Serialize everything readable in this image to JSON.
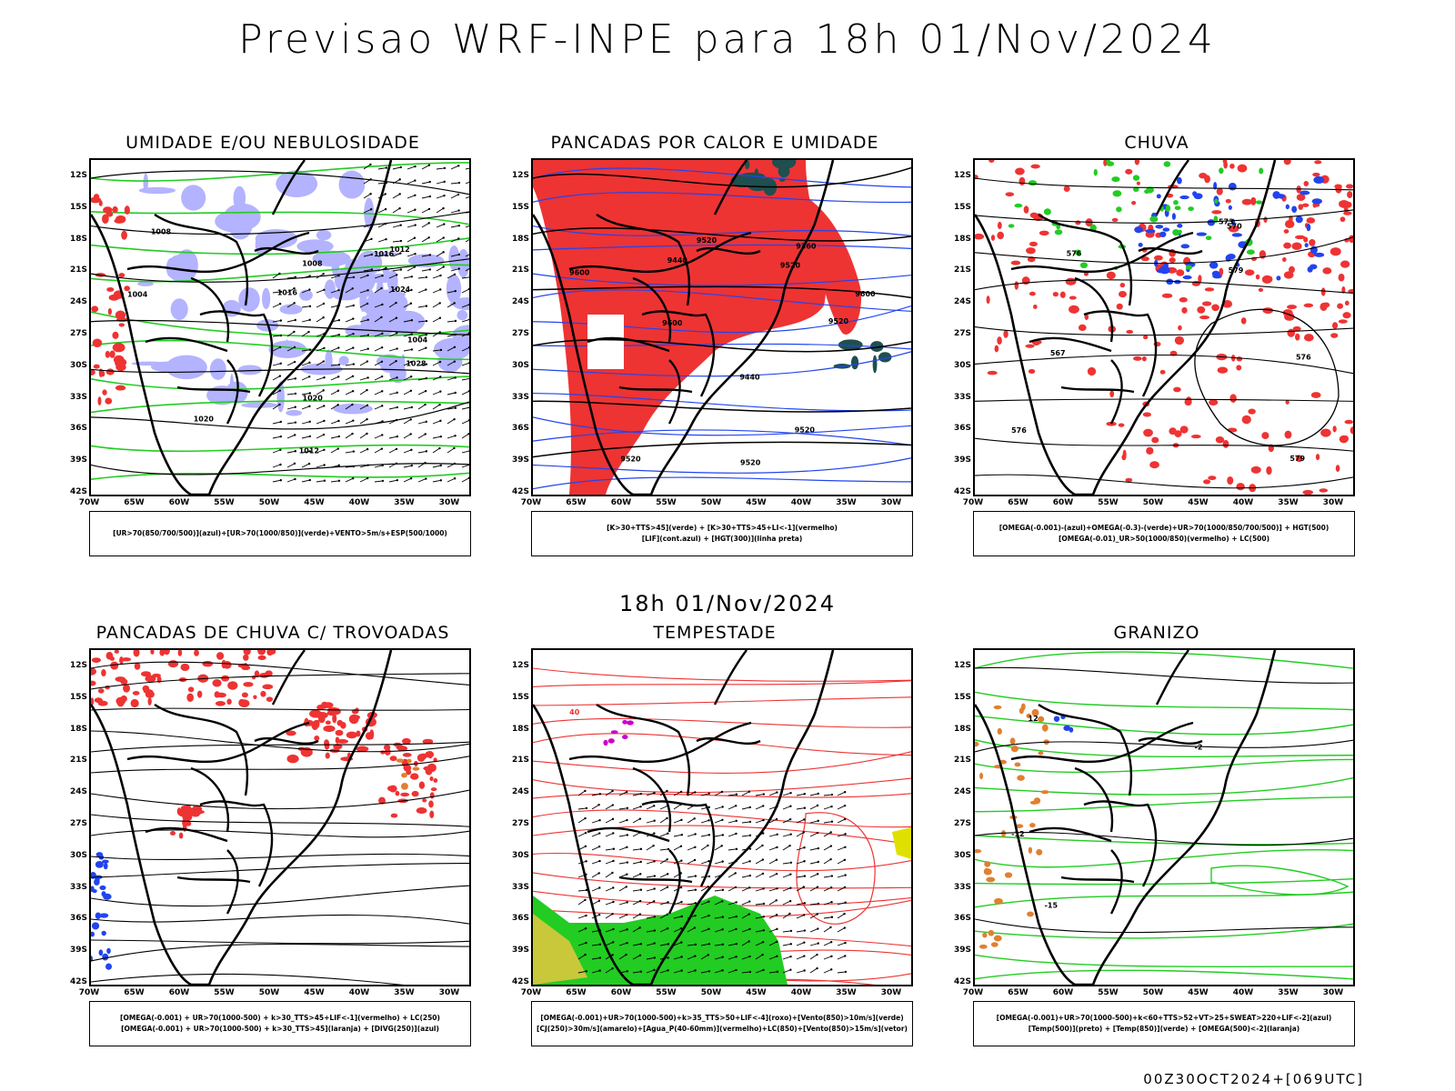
{
  "header": {
    "title": "Previsao WRF-INPE  para 18h 01/Nov/2024",
    "subtitle": "18h 01/Nov/2024",
    "footer": "00Z30OCT2024+[069UTC]"
  },
  "axes": {
    "latitudes": [
      "12S",
      "15S",
      "18S",
      "21S",
      "24S",
      "27S",
      "30S",
      "33S",
      "36S",
      "39S",
      "42S"
    ],
    "longitudes": [
      "70W",
      "65W",
      "60W",
      "55W",
      "50W",
      "45W",
      "40W",
      "35W",
      "30W"
    ]
  },
  "colors": {
    "humidity_blue": "#b3b3ff",
    "green": "#22cc22",
    "red": "#ee3333",
    "blue": "#2244ee",
    "dark_teal": "#1f4f4f",
    "orange": "#e08030",
    "yellow": "#e0e000",
    "yellow_green": "#c8c83a",
    "magenta": "#cc00cc"
  },
  "panels": [
    {
      "id": "umidade",
      "title": "UMIDADE E/OU NEBULOSIDADE",
      "legend": [
        "[UR>70(850/700/500)](azul)+[UR>70(1000/850)](verde)+VENTO>5m/s+ESP(500/1000)"
      ],
      "contour_labels": [
        "1004",
        "1008",
        "1012",
        "1016",
        "1020",
        "1024",
        "1028",
        "1004",
        "1008",
        "1012",
        "1016",
        "1020"
      ]
    },
    {
      "id": "pancadas-calor",
      "title": "PANCADAS POR CALOR E UMIDADE",
      "legend": [
        "[K>30+TTS>45](verde) + [K>30+TTS>45+LI<-1](vermelho)",
        "[LIF](cont.azul) + [HGT(300)](linha preta)"
      ],
      "contour_labels": [
        "9600",
        "9520",
        "9600",
        "9520",
        "9600",
        "9520",
        "9520",
        "9440",
        "9360",
        "9440",
        "9520",
        "9520"
      ]
    },
    {
      "id": "chuva",
      "title": "CHUVA",
      "legend": [
        "[OMEGA(-0.001)-(azul)+OMEGA(-0.3)-(verde)+UR>70(1000/850/700/500)] + HGT(500)",
        "[OMEGA(-0.01)_UR>50(1000/850)(vermelho) + LC(500)"
      ],
      "contour_labels": [
        "576",
        "579",
        "573",
        "570",
        "567",
        "576",
        "579",
        "576"
      ]
    },
    {
      "id": "trovoadas",
      "title": "PANCADAS DE CHUVA C/ TROVOADAS",
      "legend": [
        "[OMEGA(-0.001) + UR>70(1000-500) + k>30_TTS>45+LIF<-1](vermelho) + LC(250)",
        "[OMEGA(-0.001) + UR>70(1000-500) + k>30_TTS>45](laranja) + [DIVG(250)](azul)"
      ],
      "contour_labels": []
    },
    {
      "id": "tempestade",
      "title": "TEMPESTADE",
      "legend": [
        "[OMEGA(-0.001)+UR>70(1000-500)+k>35_TTS>50+LIF<-4](roxo)+[Vento(850)>10m/s](verde)",
        "[CJ(250)>30m/s](amarelo)+[Agua_P(40-60mm)](vermelho)+LC(850)+[Vento(850)>15m/s](vetor)"
      ],
      "contour_labels": [
        "40"
      ]
    },
    {
      "id": "granizo",
      "title": "GRANIZO",
      "legend": [
        "[OMEGA(-0.001)+UR>70(1000-500)+k<60+TTS>52+VT>25+SWEAT>220+LIF<-2](azul)",
        "[Temp(500)](preto) + [Temp(850)](verde) + [OMEGA(500)<-2](laranja)"
      ],
      "contour_labels": [
        "-12",
        "-15",
        "-2",
        "12"
      ]
    }
  ]
}
